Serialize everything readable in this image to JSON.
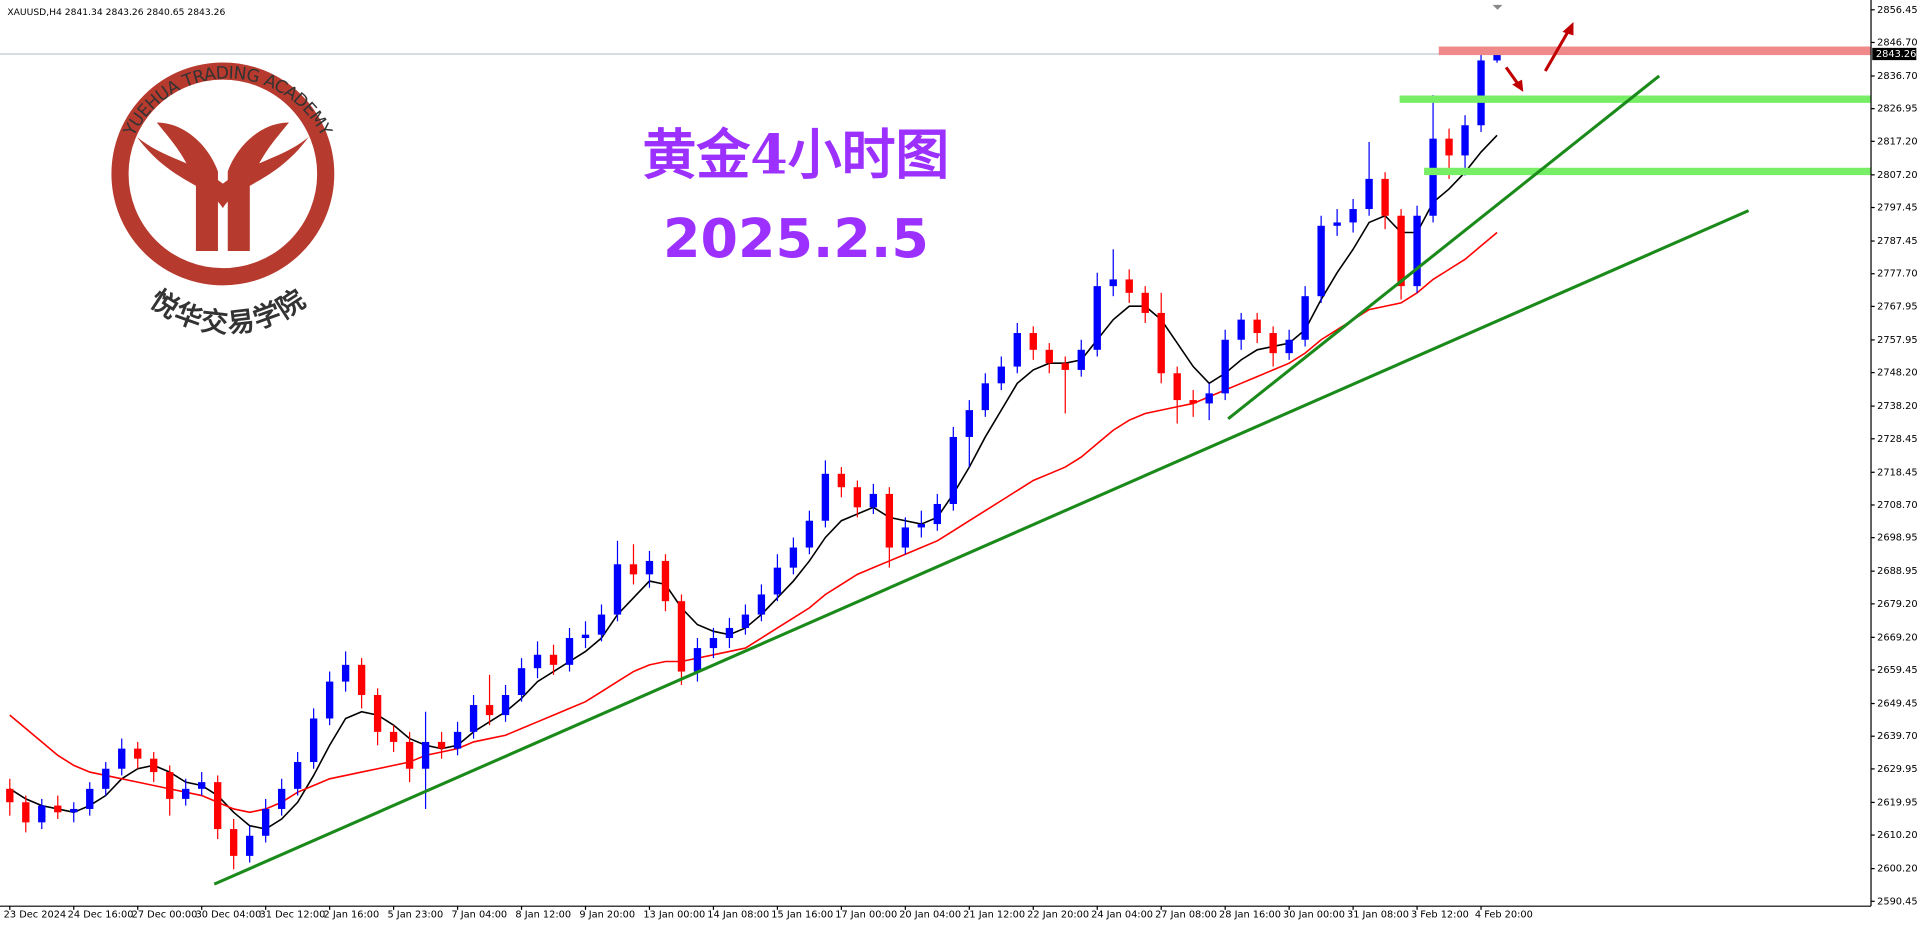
{
  "chart_data": {
    "type": "candlestick",
    "symbol": "XAUUSD,H4",
    "title": "黄金4小时图",
    "subtitle": "2025.2.5",
    "logo_text": "YUEHUA TRADING ACADEMY",
    "logo_cn": "悦华交易学院",
    "up_color": "#0000ff",
    "down_color": "#ff0000",
    "ylim": [
      2590.45,
      2856.45
    ],
    "yticks": [
      2856.45,
      {
        "value": 2846.7,
        "label": "2846.70"
      },
      {
        "value": 2836.7,
        "label": "2836.70"
      },
      2826.95,
      {
        "value": 2817.2,
        "label": "2817.20"
      },
      {
        "value": 2807.2,
        "label": "2807.20"
      },
      2797.45,
      2787.45,
      {
        "value": 2777.7,
        "label": "2777.70"
      },
      2767.95,
      2757.95,
      {
        "value": 2748.2,
        "label": "2748.20"
      },
      {
        "value": 2738.2,
        "label": "2738.20"
      },
      2728.45,
      2718.45,
      {
        "value": 2708.7,
        "label": "2708.70"
      },
      2698.95,
      2688.95,
      {
        "value": 2679.2,
        "label": "2679.20"
      },
      {
        "value": 2669.2,
        "label": "2669.20"
      },
      2659.45,
      2649.45,
      {
        "value": 2639.7,
        "label": "2639.70"
      },
      2629.95,
      2619.95,
      {
        "value": 2610.2,
        "label": "2610.20"
      },
      {
        "value": 2600.2,
        "label": "2600.20"
      },
      2590.45
    ],
    "categories": [
      "23 Dec 2024",
      null,
      null,
      null,
      "24 Dec 16:00",
      null,
      null,
      null,
      "27 Dec 00:00",
      null,
      null,
      null,
      "30 Dec 04:00",
      null,
      null,
      null,
      "31 Dec 12:00",
      null,
      null,
      null,
      "2 Jan 16:00",
      null,
      null,
      null,
      "5 Jan 23:00",
      null,
      null,
      null,
      "7 Jan 04:00",
      null,
      null,
      null,
      "8 Jan 12:00",
      null,
      null,
      null,
      "9 Jan 20:00",
      null,
      null,
      null,
      "13 Jan 00:00",
      null,
      null,
      null,
      "14 Jan 08:00",
      null,
      null,
      null,
      "15 Jan 16:00",
      null,
      null,
      null,
      "17 Jan 00:00",
      null,
      null,
      null,
      "20 Jan 04:00",
      null,
      null,
      null,
      "21 Jan 12:00",
      null,
      null,
      null,
      "22 Jan 20:00",
      null,
      null,
      null,
      "24 Jan 04:00",
      null,
      null,
      null,
      "27 Jan 08:00",
      null,
      null,
      null,
      "28 Jan 16:00",
      null,
      null,
      null,
      "30 Jan 00:00",
      null,
      null,
      null,
      "31 Jan 08:00",
      null,
      null,
      null,
      "3 Feb 12:00",
      null,
      null,
      null,
      "4 Feb 20:00",
      null
    ],
    "values": [
      [
        2624,
        2627,
        2616,
        2620
      ],
      [
        2620,
        2622,
        2611,
        2614
      ],
      [
        2614,
        2621,
        2612,
        2619
      ],
      [
        2619,
        2622,
        2615,
        2617
      ],
      [
        2617,
        2620,
        2614,
        2618
      ],
      [
        2618,
        2626,
        2616,
        2624
      ],
      [
        2624,
        2632,
        2622,
        2630
      ],
      [
        2630,
        2639,
        2628,
        2636
      ],
      [
        2636,
        2638,
        2630,
        2633
      ],
      [
        2633,
        2635,
        2626,
        2629
      ],
      [
        2629,
        2631,
        2616,
        2621
      ],
      [
        2621,
        2627,
        2619,
        2624
      ],
      [
        2624,
        2629,
        2622,
        2626
      ],
      [
        2626,
        2628,
        2609,
        2612
      ],
      [
        2612,
        2615,
        2600,
        2604
      ],
      [
        2604,
        2613,
        2602,
        2610
      ],
      [
        2610,
        2621,
        2608,
        2618
      ],
      [
        2618,
        2627,
        2616,
        2624
      ],
      [
        2624,
        2635,
        2622,
        2632
      ],
      [
        2632,
        2648,
        2630,
        2645
      ],
      [
        2645,
        2659,
        2643,
        2656
      ],
      [
        2656,
        2665,
        2653,
        2661
      ],
      [
        2661,
        2663,
        2648,
        2652
      ],
      [
        2652,
        2654,
        2637,
        2641
      ],
      [
        2641,
        2643,
        2635,
        2638
      ],
      [
        2638,
        2641,
        2626,
        2630
      ],
      [
        2630,
        2647,
        2618,
        2638
      ],
      [
        2638,
        2641,
        2633,
        2636
      ],
      [
        2636,
        2644,
        2634,
        2641
      ],
      [
        2641,
        2652,
        2639,
        2649
      ],
      [
        2649,
        2658,
        2643,
        2646
      ],
      [
        2646,
        2655,
        2644,
        2652
      ],
      [
        2652,
        2663,
        2650,
        2660
      ],
      [
        2660,
        2668,
        2657,
        2664
      ],
      [
        2664,
        2667,
        2658,
        2661
      ],
      [
        2661,
        2672,
        2659,
        2669
      ],
      [
        2669,
        2674,
        2666,
        2670
      ],
      [
        2670,
        2679,
        2668,
        2676
      ],
      [
        2676,
        2698,
        2674,
        2691
      ],
      [
        2691,
        2697,
        2685,
        2688
      ],
      [
        2688,
        2695,
        2684,
        2692
      ],
      [
        2692,
        2694,
        2677,
        2680
      ],
      [
        2680,
        2682,
        2655,
        2659
      ],
      [
        2659,
        2669,
        2656,
        2666
      ],
      [
        2666,
        2672,
        2663,
        2669
      ],
      [
        2669,
        2675,
        2666,
        2672
      ],
      [
        2672,
        2679,
        2670,
        2676
      ],
      [
        2676,
        2685,
        2674,
        2682
      ],
      [
        2682,
        2694,
        2680,
        2690
      ],
      [
        2690,
        2699,
        2688,
        2696
      ],
      [
        2696,
        2707,
        2694,
        2704
      ],
      [
        2704,
        2722,
        2702,
        2718
      ],
      [
        2718,
        2720,
        2711,
        2714
      ],
      [
        2714,
        2716,
        2705,
        2708
      ],
      [
        2708,
        2715,
        2706,
        2712
      ],
      [
        2712,
        2714,
        2690,
        2696
      ],
      [
        2696,
        2705,
        2694,
        2702
      ],
      [
        2702,
        2707,
        2699,
        2703
      ],
      [
        2703,
        2712,
        2701,
        2709
      ],
      [
        2709,
        2732,
        2707,
        2729
      ],
      [
        2729,
        2740,
        2720,
        2737
      ],
      [
        2737,
        2748,
        2735,
        2745
      ],
      [
        2745,
        2753,
        2743,
        2750
      ],
      [
        2750,
        2763,
        2748,
        2760
      ],
      [
        2760,
        2762,
        2752,
        2755
      ],
      [
        2755,
        2757,
        2748,
        2751
      ],
      [
        2751,
        2753,
        2736,
        2749
      ],
      [
        2749,
        2758,
        2747,
        2755
      ],
      [
        2755,
        2778,
        2753,
        2774
      ],
      [
        2774,
        2785,
        2771,
        2776
      ],
      [
        2776,
        2779,
        2769,
        2772
      ],
      [
        2772,
        2774,
        2763,
        2766
      ],
      [
        2766,
        2772,
        2745,
        2748
      ],
      [
        2748,
        2750,
        2733,
        2740
      ],
      [
        2740,
        2743,
        2735,
        2739
      ],
      [
        2739,
        2745,
        2734,
        2742
      ],
      [
        2742,
        2761,
        2740,
        2758
      ],
      [
        2758,
        2766,
        2755,
        2764
      ],
      [
        2764,
        2766,
        2757,
        2760
      ],
      [
        2760,
        2762,
        2750,
        2754
      ],
      [
        2754,
        2761,
        2752,
        2758
      ],
      [
        2758,
        2774,
        2756,
        2771
      ],
      [
        2771,
        2795,
        2769,
        2792
      ],
      [
        2792,
        2797,
        2789,
        2793
      ],
      [
        2793,
        2800,
        2790,
        2797
      ],
      [
        2797,
        2817,
        2795,
        2806
      ],
      [
        2806,
        2808,
        2791,
        2795
      ],
      [
        2795,
        2797,
        2770,
        2774
      ],
      [
        2774,
        2798,
        2772,
        2795
      ],
      [
        2795,
        2831,
        2793,
        2818
      ],
      [
        2818,
        2821,
        2806,
        2813
      ],
      [
        2813,
        2825,
        2807,
        2822
      ],
      [
        2822,
        2845,
        2820,
        2841.34
      ],
      [
        2841.34,
        2843.26,
        2840.65,
        2843.26
      ]
    ],
    "series": [
      {
        "color": "#000000",
        "values": [
          2624,
          2621,
          2619,
          2618,
          2617,
          2619,
          2622,
          2627,
          2630,
          2631,
          2629,
          2626,
          2625,
          2622,
          2617,
          2613,
          2612,
          2615,
          2620,
          2628,
          2637,
          2645,
          2647,
          2646,
          2643,
          2639,
          2637,
          2636,
          2637,
          2641,
          2644,
          2647,
          2651,
          2656,
          2659,
          2662,
          2665,
          2669,
          2676,
          2681,
          2686,
          2685,
          2678,
          2673,
          2671,
          2670,
          2672,
          2676,
          2681,
          2686,
          2692,
          2699,
          2704,
          2706,
          2708,
          2705,
          2704,
          2703,
          2705,
          2712,
          2720,
          2729,
          2737,
          2745,
          2749,
          2751,
          2751,
          2752,
          2758,
          2764,
          2768,
          2768,
          2764,
          2757,
          2750,
          2745,
          2748,
          2752,
          2755,
          2756,
          2757,
          2761,
          2770,
          2778,
          2785,
          2793,
          2795,
          2790,
          2790,
          2799,
          2803,
          2808,
          2814,
          2819
        ]
      },
      {
        "color": "#ff0000",
        "values": [
          2646,
          2642,
          2638,
          2634,
          2631,
          2629,
          2628,
          2627,
          2626,
          2625,
          2624,
          2623,
          2622,
          2620,
          2618,
          2617,
          2618,
          2620,
          2623,
          2625,
          2627,
          2628,
          2629,
          2630,
          2631,
          2632,
          2634,
          2635,
          2636,
          2638,
          2639,
          2640,
          2642,
          2644,
          2646,
          2648,
          2650,
          2653,
          2656,
          2659,
          2661,
          2662,
          2662,
          2663,
          2664,
          2665,
          2666,
          2669,
          2672,
          2675,
          2678,
          2682,
          2685,
          2688,
          2690,
          2692,
          2694,
          2696,
          2698,
          2701,
          2704,
          2707,
          2710,
          2713,
          2716,
          2718,
          2720,
          2723,
          2727,
          2731,
          2734,
          2736,
          2737,
          2738,
          2739,
          2741,
          2743,
          2745,
          2747,
          2749,
          2751,
          2754,
          2758,
          2761,
          2764,
          2767,
          2768,
          2769,
          2772,
          2776,
          2779,
          2782,
          2786,
          2790
        ]
      }
    ]
  }
}
